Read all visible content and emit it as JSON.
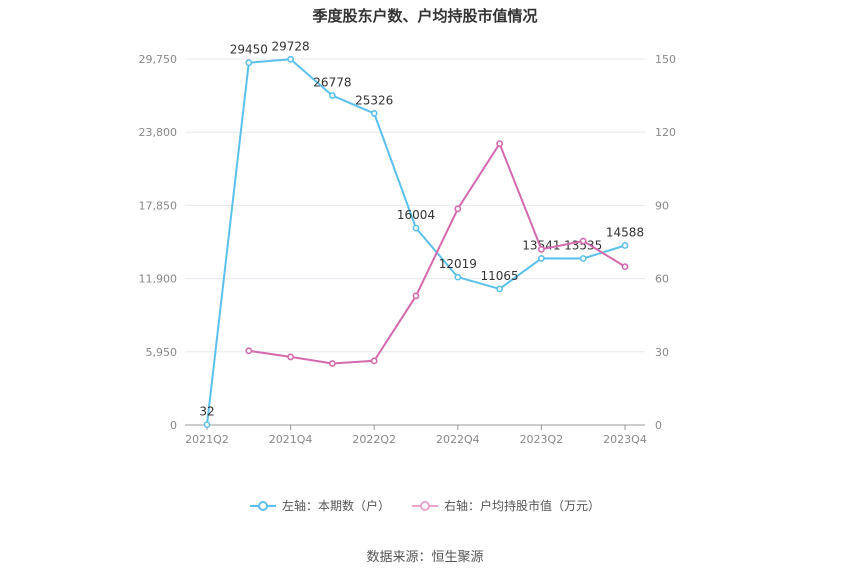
{
  "chart_data": {
    "type": "line",
    "title": "季度股东户数、户均持股市值情况",
    "categories": [
      "2021Q2",
      "2021Q3",
      "2021Q4",
      "2022Q1",
      "2022Q2",
      "2022Q3",
      "2022Q4",
      "2023Q1",
      "2023Q2",
      "2023Q3",
      "2023Q4"
    ],
    "x_tick_labels": [
      "2021Q2",
      "2021Q4",
      "2022Q2",
      "2022Q4",
      "2023Q2",
      "2023Q4"
    ],
    "y_left": {
      "ticks": [
        "0",
        "5,950",
        "11,900",
        "17,850",
        "23,800",
        "29,750"
      ],
      "min": 0,
      "max": 29750
    },
    "y_right": {
      "ticks": [
        "0",
        "30",
        "60",
        "90",
        "120",
        "150"
      ],
      "min": 0,
      "max": 150
    },
    "series": [
      {
        "name": "左轴：本期数（户）",
        "axis": "left",
        "color": "#5bc0eb",
        "values": [
          32,
          29450,
          29728,
          26778,
          25326,
          16004,
          12019,
          11065,
          13541,
          13535,
          14588
        ],
        "labels": [
          "32",
          "29450",
          "29728",
          "26778",
          "25326",
          "16004",
          "12019",
          "11065",
          "13541",
          "13535",
          "14588"
        ]
      },
      {
        "name": "右轴：户均持股市值（万元）",
        "axis": "right",
        "color": "#d36aae",
        "values": [
          null,
          30.4,
          27.9,
          25.2,
          26.3,
          52.9,
          88.6,
          115.3,
          72.0,
          75.4,
          64.9
        ]
      }
    ],
    "grid": true,
    "legend_position": "bottom"
  },
  "source": "数据来源：恒生聚源"
}
